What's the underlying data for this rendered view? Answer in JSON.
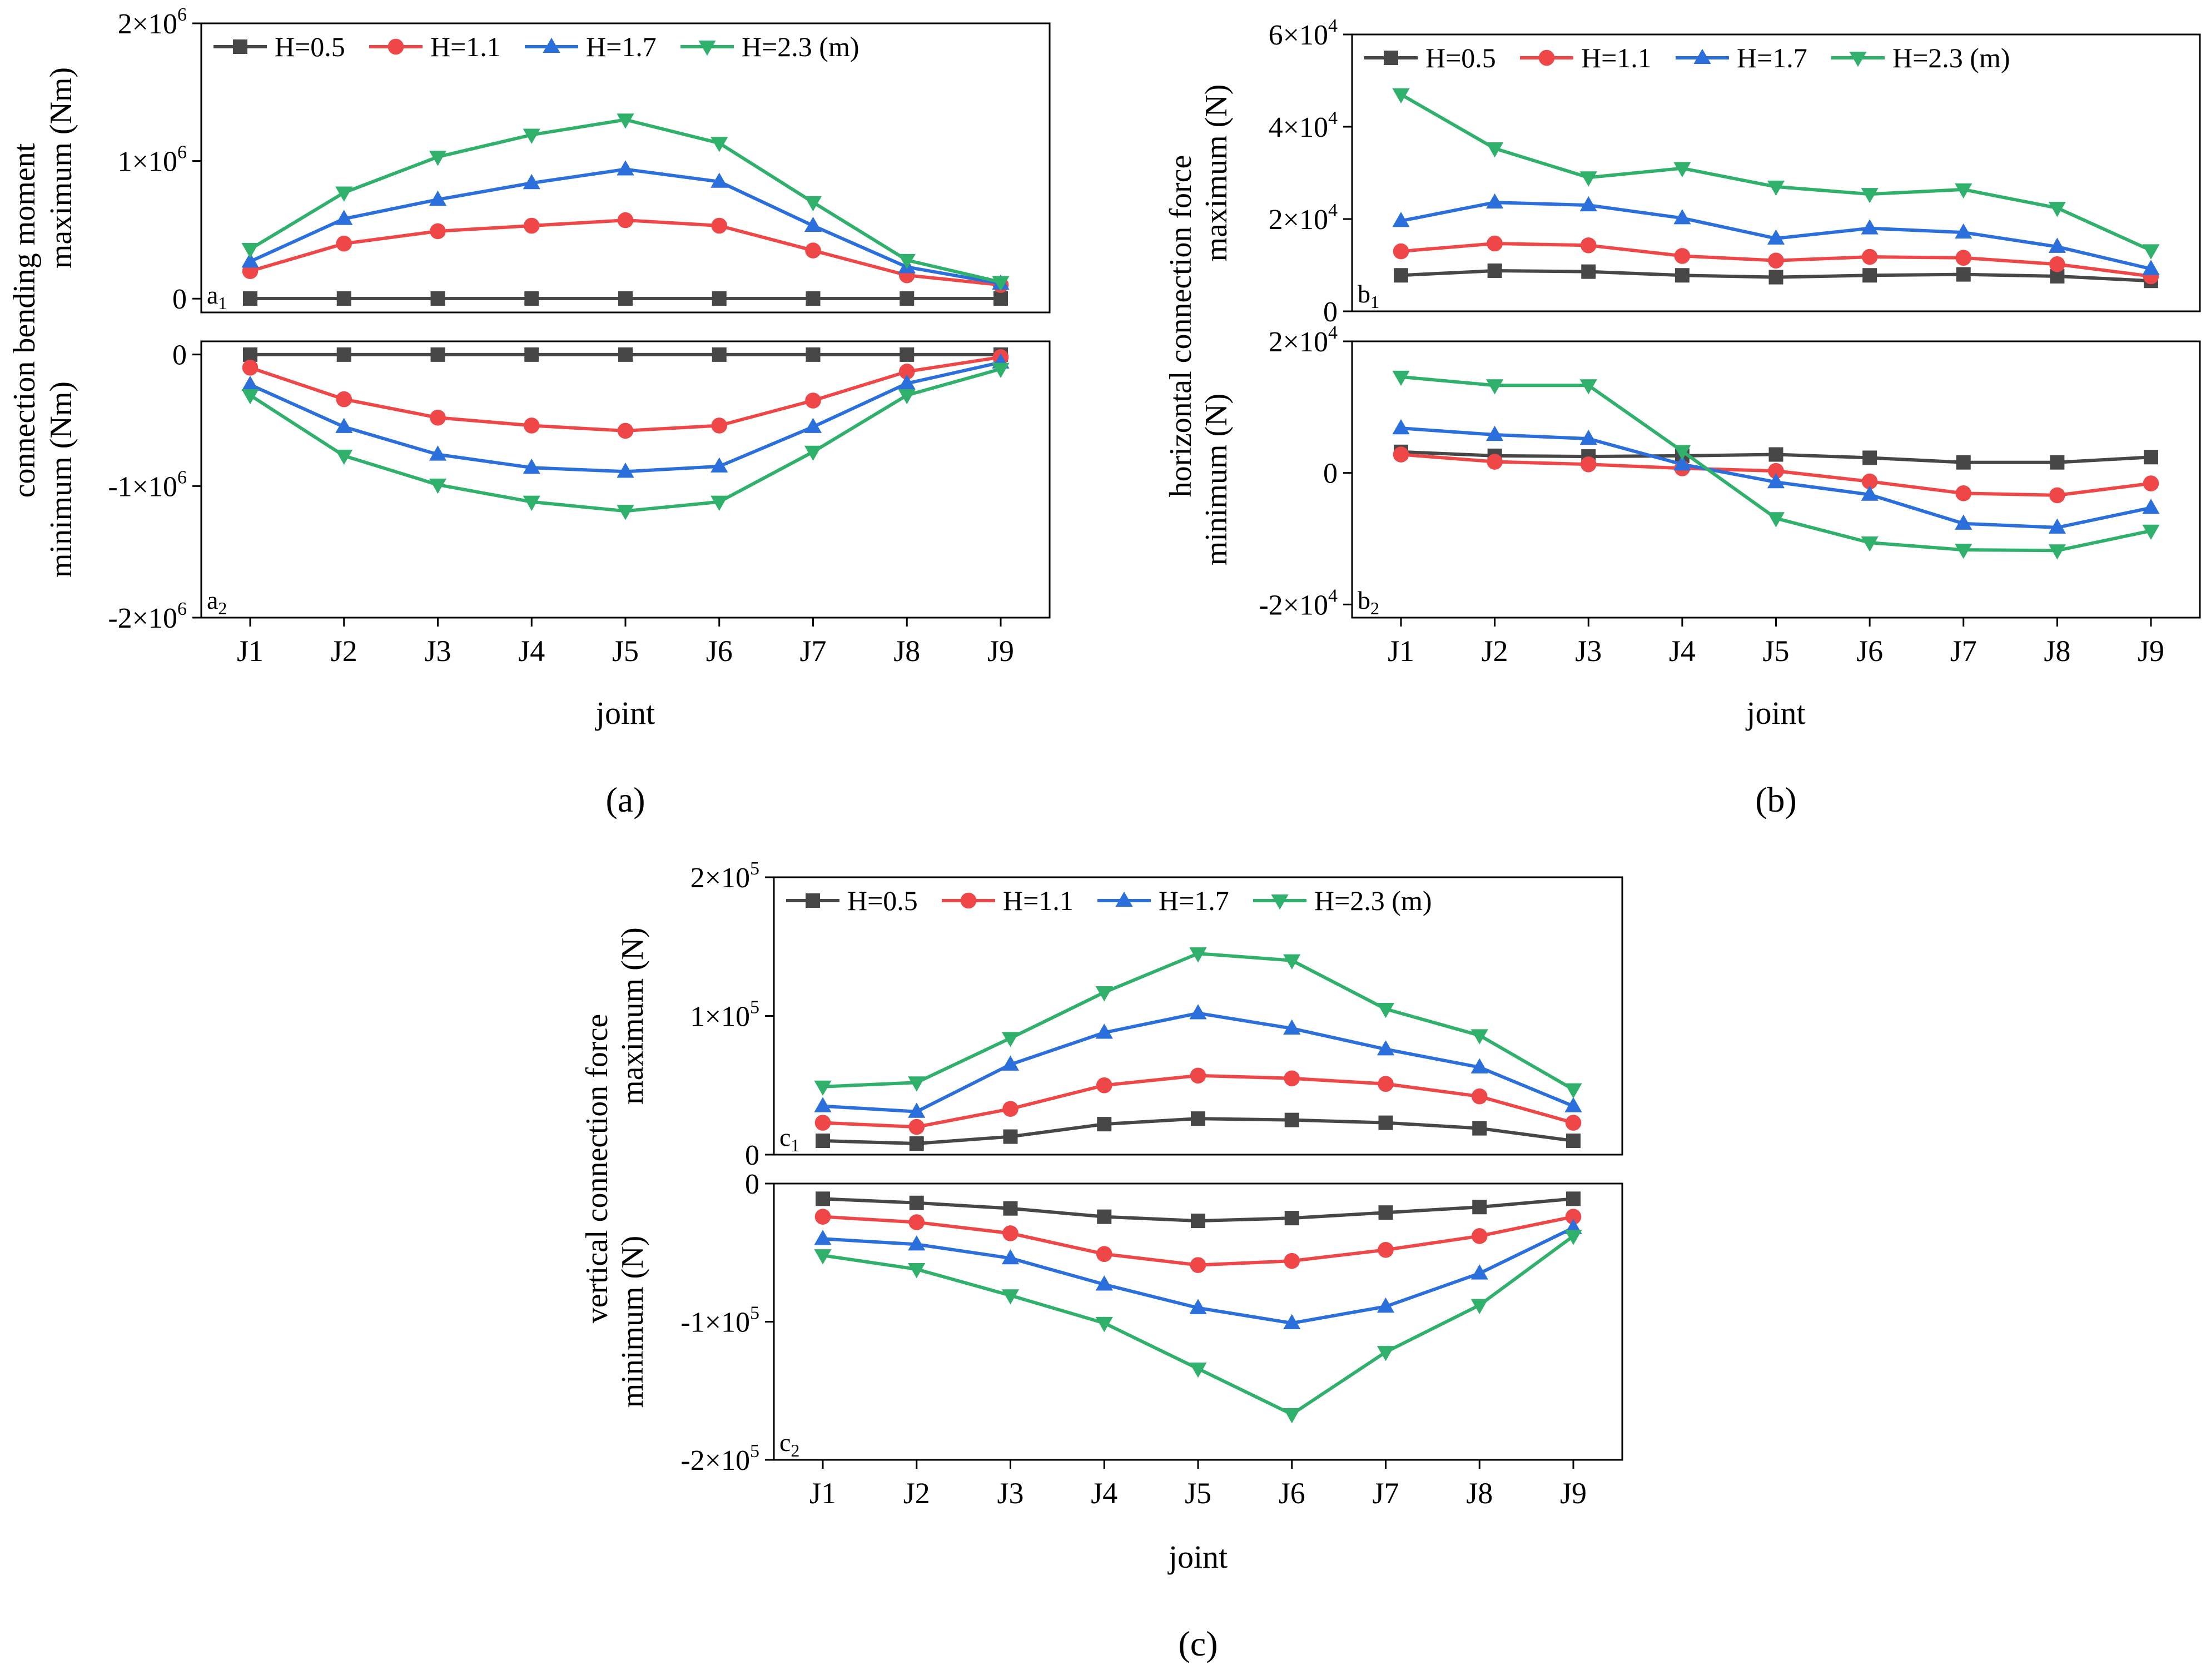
{
  "figure": {
    "x_categories": [
      "J1",
      "J2",
      "J3",
      "J4",
      "J5",
      "J6",
      "J7",
      "J8",
      "J9"
    ],
    "legend_labels": [
      "H=0.5",
      "H=1.1",
      "H=1.7",
      "H=2.3 (m)"
    ],
    "colors": {
      "H=0.5": "#474747",
      "H=1.1": "#ef4747",
      "H=1.7": "#2a6fdb",
      "H=2.3": "#2fb06b"
    },
    "markers": {
      "H=0.5": "square",
      "H=1.1": "circle",
      "H=1.7": "triangle-up",
      "H=2.3": "triangle-down"
    },
    "panel_labels": [
      "(a)",
      "(b)",
      "(c)"
    ]
  },
  "chart_data": [
    {
      "id": "a1",
      "type": "line",
      "panel": "a",
      "subpanel_label": "a1",
      "ylabel_shared": "connection bending moment",
      "ylabel": "maximum (Nm)",
      "xlabel": "joint",
      "categories": [
        "J1",
        "J2",
        "J3",
        "J4",
        "J5",
        "J6",
        "J7",
        "J8",
        "J9"
      ],
      "ylim": [
        -100000,
        2000000
      ],
      "yticks": [
        {
          "value": 0,
          "mant": "0",
          "exp": ""
        },
        {
          "value": 1000000,
          "mant": "1×10",
          "exp": "6"
        },
        {
          "value": 2000000,
          "mant": "2×10",
          "exp": "6"
        }
      ],
      "legend": true,
      "grid": false,
      "series": [
        {
          "name": "H=0.5",
          "values": [
            1000,
            1000,
            1000,
            1000,
            1000,
            1000,
            1000,
            1000,
            1000
          ]
        },
        {
          "name": "H=1.1",
          "values": [
            200000,
            400000,
            490000,
            530000,
            570000,
            530000,
            350000,
            170000,
            100000
          ]
        },
        {
          "name": "H=1.7",
          "values": [
            270000,
            580000,
            720000,
            840000,
            940000,
            850000,
            530000,
            230000,
            110000
          ]
        },
        {
          "name": "H=2.3",
          "values": [
            360000,
            770000,
            1030000,
            1190000,
            1300000,
            1130000,
            700000,
            280000,
            120000
          ]
        }
      ]
    },
    {
      "id": "a2",
      "type": "line",
      "panel": "a",
      "subpanel_label": "a2",
      "ylabel": "minimum (Nm)",
      "xlabel": "joint",
      "categories": [
        "J1",
        "J2",
        "J3",
        "J4",
        "J5",
        "J6",
        "J7",
        "J8",
        "J9"
      ],
      "ylim": [
        -2000000,
        100000
      ],
      "yticks": [
        {
          "value": 0,
          "mant": "0",
          "exp": ""
        },
        {
          "value": -1000000,
          "mant": "-1×10",
          "exp": "6"
        },
        {
          "value": -2000000,
          "mant": "-2×10",
          "exp": "6"
        }
      ],
      "legend": false,
      "grid": false,
      "series": [
        {
          "name": "H=0.5",
          "values": [
            -1000,
            -1000,
            -1000,
            -1000,
            -1000,
            -1000,
            -1000,
            -1000,
            -1000
          ]
        },
        {
          "name": "H=1.1",
          "values": [
            -100000,
            -340000,
            -480000,
            -540000,
            -580000,
            -540000,
            -350000,
            -130000,
            -20000
          ]
        },
        {
          "name": "H=1.7",
          "values": [
            -230000,
            -550000,
            -760000,
            -860000,
            -890000,
            -850000,
            -550000,
            -220000,
            -60000
          ]
        },
        {
          "name": "H=2.3",
          "values": [
            -310000,
            -770000,
            -990000,
            -1120000,
            -1190000,
            -1120000,
            -740000,
            -310000,
            -110000
          ]
        }
      ]
    },
    {
      "id": "b1",
      "type": "line",
      "panel": "b",
      "subpanel_label": "b1",
      "ylabel_shared": "horizontal connection force",
      "ylabel": "maximum (N)",
      "xlabel": "joint",
      "categories": [
        "J1",
        "J2",
        "J3",
        "J4",
        "J5",
        "J6",
        "J7",
        "J8",
        "J9"
      ],
      "ylim": [
        0,
        60000
      ],
      "yticks": [
        {
          "value": 0,
          "mant": "0",
          "exp": ""
        },
        {
          "value": 20000,
          "mant": "2×10",
          "exp": "4"
        },
        {
          "value": 40000,
          "mant": "4×10",
          "exp": "4"
        },
        {
          "value": 60000,
          "mant": "6×10",
          "exp": "4"
        }
      ],
      "legend": true,
      "grid": false,
      "series": [
        {
          "name": "H=0.5",
          "values": [
            7800,
            8800,
            8600,
            7800,
            7400,
            7800,
            8000,
            7600,
            6600
          ]
        },
        {
          "name": "H=1.1",
          "values": [
            13000,
            14700,
            14300,
            12000,
            11000,
            11800,
            11600,
            10200,
            7600
          ]
        },
        {
          "name": "H=1.7",
          "values": [
            19600,
            23600,
            23000,
            20200,
            15800,
            18000,
            17100,
            14000,
            9200
          ]
        },
        {
          "name": "H=2.3",
          "values": [
            47000,
            35300,
            29000,
            31000,
            27000,
            25400,
            26400,
            22400,
            13200
          ]
        }
      ]
    },
    {
      "id": "b2",
      "type": "line",
      "panel": "b",
      "subpanel_label": "b2",
      "ylabel": "minimum (N)",
      "xlabel": "joint",
      "categories": [
        "J1",
        "J2",
        "J3",
        "J4",
        "J5",
        "J6",
        "J7",
        "J8",
        "J9"
      ],
      "ylim": [
        -22000,
        20000
      ],
      "yticks": [
        {
          "value": 0,
          "mant": "0",
          "exp": ""
        },
        {
          "value": 20000,
          "mant": "2×10",
          "exp": "4"
        },
        {
          "value": -20000,
          "mant": "-2×10",
          "exp": "4"
        }
      ],
      "legend": false,
      "grid": false,
      "series": [
        {
          "name": "H=0.5",
          "values": [
            3200,
            2600,
            2500,
            2600,
            2800,
            2300,
            1600,
            1600,
            2400
          ]
        },
        {
          "name": "H=1.1",
          "values": [
            2800,
            1700,
            1300,
            700,
            300,
            -1300,
            -3100,
            -3400,
            -1600
          ]
        },
        {
          "name": "H=1.7",
          "values": [
            6800,
            5800,
            5200,
            1300,
            -1400,
            -3300,
            -7700,
            -8300,
            -5300
          ]
        },
        {
          "name": "H=2.3",
          "values": [
            14600,
            13300,
            13300,
            3300,
            -6900,
            -10600,
            -11700,
            -11800,
            -8800
          ]
        }
      ]
    },
    {
      "id": "c1",
      "type": "line",
      "panel": "c",
      "subpanel_label": "c1",
      "ylabel_shared": "vertical connection force",
      "ylabel": "maximum (N)",
      "xlabel": "joint",
      "categories": [
        "J1",
        "J2",
        "J3",
        "J4",
        "J5",
        "J6",
        "J7",
        "J8",
        "J9"
      ],
      "ylim": [
        0,
        200000
      ],
      "yticks": [
        {
          "value": 0,
          "mant": "0",
          "exp": ""
        },
        {
          "value": 100000,
          "mant": "1×10",
          "exp": "5"
        },
        {
          "value": 200000,
          "mant": "2×10",
          "exp": "5"
        }
      ],
      "legend": true,
      "grid": false,
      "series": [
        {
          "name": "H=0.5",
          "values": [
            10000,
            8000,
            13000,
            22000,
            26000,
            25000,
            23000,
            19000,
            10000
          ]
        },
        {
          "name": "H=1.1",
          "values": [
            23000,
            20000,
            33000,
            50000,
            57000,
            55000,
            51000,
            42000,
            23000
          ]
        },
        {
          "name": "H=1.7",
          "values": [
            35000,
            31000,
            65000,
            88000,
            102000,
            91000,
            76000,
            63000,
            35000
          ]
        },
        {
          "name": "H=2.3",
          "values": [
            49000,
            52000,
            84000,
            117000,
            145000,
            140000,
            105000,
            86000,
            47000
          ]
        }
      ]
    },
    {
      "id": "c2",
      "type": "line",
      "panel": "c",
      "subpanel_label": "c2",
      "ylabel": "minimum (N)",
      "xlabel": "joint",
      "categories": [
        "J1",
        "J2",
        "J3",
        "J4",
        "J5",
        "J6",
        "J7",
        "J8",
        "J9"
      ],
      "ylim": [
        -200000,
        0
      ],
      "yticks": [
        {
          "value": 0,
          "mant": "0",
          "exp": ""
        },
        {
          "value": -100000,
          "mant": "-1×10",
          "exp": "5"
        },
        {
          "value": -200000,
          "mant": "-2×10",
          "exp": "5"
        }
      ],
      "legend": false,
      "grid": false,
      "series": [
        {
          "name": "H=0.5",
          "values": [
            -11000,
            -14000,
            -18000,
            -24000,
            -27000,
            -25000,
            -21000,
            -17000,
            -11000
          ]
        },
        {
          "name": "H=1.1",
          "values": [
            -24000,
            -28000,
            -36000,
            -51000,
            -59000,
            -56000,
            -48000,
            -38000,
            -24000
          ]
        },
        {
          "name": "H=1.7",
          "values": [
            -40000,
            -44000,
            -54000,
            -73000,
            -90000,
            -101000,
            -89000,
            -65000,
            -32000
          ]
        },
        {
          "name": "H=2.3",
          "values": [
            -52000,
            -62000,
            -81000,
            -101000,
            -134000,
            -167000,
            -122000,
            -88000,
            -38000
          ]
        }
      ]
    }
  ]
}
